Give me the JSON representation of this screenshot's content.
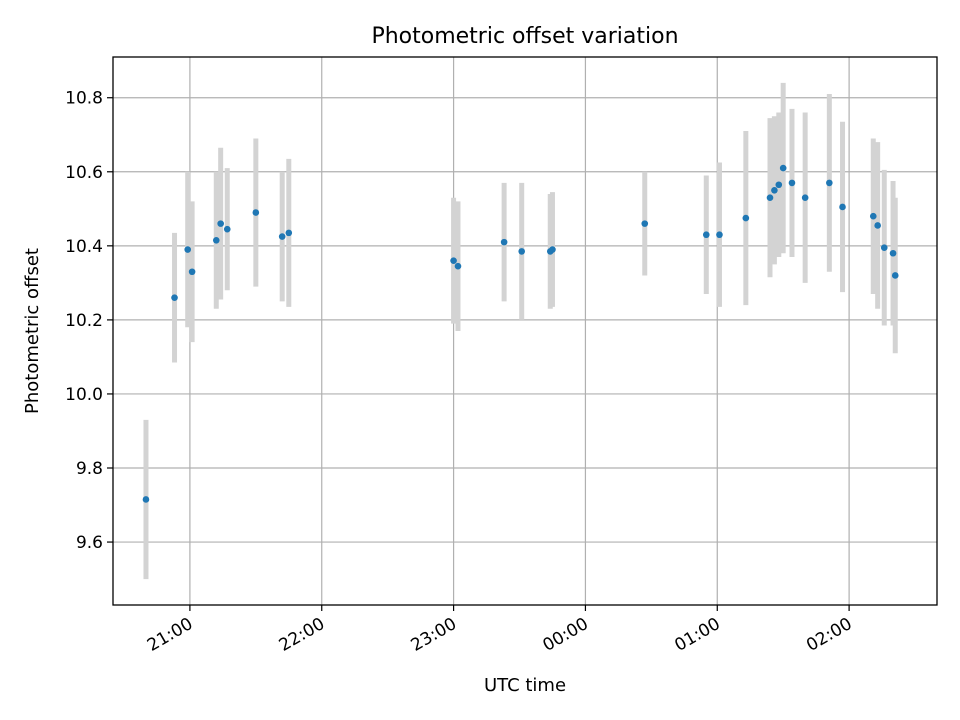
{
  "chart_data": {
    "type": "scatter",
    "title": "Photometric offset variation",
    "xlabel": "UTC time",
    "ylabel": "Photometric offset",
    "x_axis": "time",
    "xlim": [
      "20:25",
      "02:40"
    ],
    "ylim": [
      9.43,
      10.91
    ],
    "x_ticks": [
      "21:00",
      "22:00",
      "23:00",
      "00:00",
      "01:00",
      "02:00"
    ],
    "y_ticks": [
      9.6,
      9.8,
      10.0,
      10.2,
      10.4,
      10.6,
      10.8
    ],
    "grid": true,
    "colors": {
      "marker": "#1f77b4",
      "errorbar": "#d3d3d3"
    },
    "points": [
      {
        "t": "20:40",
        "y": 9.715,
        "err": 0.215
      },
      {
        "t": "20:53",
        "y": 10.26,
        "err": 0.175
      },
      {
        "t": "20:59",
        "y": 10.39,
        "err": 0.21
      },
      {
        "t": "21:01",
        "y": 10.33,
        "err": 0.19
      },
      {
        "t": "21:12",
        "y": 10.415,
        "err": 0.185
      },
      {
        "t": "21:14",
        "y": 10.46,
        "err": 0.205
      },
      {
        "t": "21:17",
        "y": 10.445,
        "err": 0.165
      },
      {
        "t": "21:30",
        "y": 10.49,
        "err": 0.2
      },
      {
        "t": "21:42",
        "y": 10.425,
        "err": 0.175
      },
      {
        "t": "21:45",
        "y": 10.435,
        "err": 0.2
      },
      {
        "t": "23:00",
        "y": 10.36,
        "err": 0.17
      },
      {
        "t": "23:02",
        "y": 10.345,
        "err": 0.175
      },
      {
        "t": "23:23",
        "y": 10.41,
        "err": 0.16
      },
      {
        "t": "23:31",
        "y": 10.385,
        "err": 0.185
      },
      {
        "t": "23:44",
        "y": 10.385,
        "err": 0.155
      },
      {
        "t": "23:45",
        "y": 10.39,
        "err": 0.155
      },
      {
        "t": "00:27",
        "y": 10.46,
        "err": 0.14
      },
      {
        "t": "00:55",
        "y": 10.43,
        "err": 0.16
      },
      {
        "t": "01:01",
        "y": 10.43,
        "err": 0.195
      },
      {
        "t": "01:13",
        "y": 10.475,
        "err": 0.235
      },
      {
        "t": "01:24",
        "y": 10.53,
        "err": 0.215
      },
      {
        "t": "01:26",
        "y": 10.55,
        "err": 0.2
      },
      {
        "t": "01:28",
        "y": 10.565,
        "err": 0.195
      },
      {
        "t": "01:30",
        "y": 10.61,
        "err": 0.23
      },
      {
        "t": "01:34",
        "y": 10.57,
        "err": 0.2
      },
      {
        "t": "01:40",
        "y": 10.53,
        "err": 0.23
      },
      {
        "t": "01:51",
        "y": 10.57,
        "err": 0.24
      },
      {
        "t": "01:57",
        "y": 10.505,
        "err": 0.23
      },
      {
        "t": "02:11",
        "y": 10.48,
        "err": 0.21
      },
      {
        "t": "02:13",
        "y": 10.455,
        "err": 0.225
      },
      {
        "t": "02:16",
        "y": 10.395,
        "err": 0.21
      },
      {
        "t": "02:20",
        "y": 10.38,
        "err": 0.195
      },
      {
        "t": "02:21",
        "y": 10.32,
        "err": 0.21
      }
    ]
  }
}
